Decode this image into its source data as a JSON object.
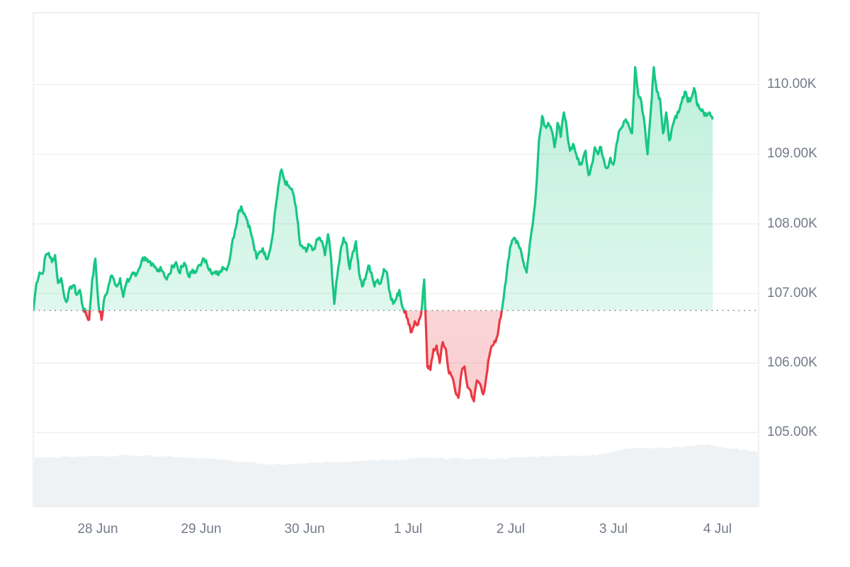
{
  "chart_data": {
    "type": "area",
    "title": "",
    "xlabel": "",
    "ylabel": "",
    "ylim": [
      103.95,
      110.99
    ],
    "y_ticks": [
      "110.00K",
      "109.00K",
      "108.00K",
      "107.00K",
      "106.00K",
      "105.00K"
    ],
    "y_tick_values": [
      110,
      109,
      108,
      107,
      106,
      105
    ],
    "x_ticks": [
      "28 Jun",
      "29 Jun",
      "30 Jun",
      "1 Jul",
      "2 Jul",
      "3 Jul",
      "4 Jul"
    ],
    "grid": true,
    "legend": "none",
    "baseline": 106.755,
    "baseline_style": "dotted",
    "colors": {
      "up_line": "#16c784",
      "down_line": "#ea3943",
      "up_fill": "#16c784",
      "down_fill": "#ea3943",
      "volume": "#eff2f5",
      "grid": "#eeeeee",
      "axis_text": "#737a89",
      "baseline": "#888888"
    },
    "series": [
      {
        "name": "Price (K USD)",
        "x_day_offset": [
          0.0,
          0.03,
          0.06,
          0.09,
          0.12,
          0.15,
          0.18,
          0.21,
          0.24,
          0.27,
          0.3,
          0.33,
          0.36,
          0.39,
          0.42,
          0.45,
          0.48,
          0.51,
          0.54,
          0.57,
          0.6,
          0.63,
          0.66,
          0.69,
          0.72,
          0.75,
          0.78,
          0.81,
          0.84,
          0.87,
          0.9,
          0.93,
          0.96,
          0.99,
          1.02,
          1.05,
          1.08,
          1.11,
          1.14,
          1.17,
          1.2,
          1.23,
          1.26,
          1.29,
          1.32,
          1.35,
          1.38,
          1.41,
          1.44,
          1.47,
          1.5,
          1.53,
          1.56,
          1.59,
          1.62,
          1.65,
          1.68,
          1.71,
          1.74,
          1.77,
          1.8,
          1.83,
          1.86,
          1.89,
          1.92,
          1.95,
          1.98,
          2.01,
          2.04,
          2.07,
          2.1,
          2.13,
          2.16,
          2.19,
          2.22,
          2.25,
          2.28,
          2.31,
          2.34,
          2.37,
          2.4,
          2.43,
          2.46,
          2.49,
          2.52,
          2.55,
          2.58,
          2.61,
          2.64,
          2.67,
          2.7,
          2.73,
          2.76,
          2.79,
          2.82,
          2.85,
          2.88,
          2.91,
          2.94,
          2.97,
          3.0,
          3.03,
          3.06,
          3.09,
          3.12,
          3.15,
          3.18,
          3.21,
          3.24,
          3.27,
          3.3,
          3.33,
          3.36,
          3.39,
          3.42,
          3.45,
          3.48,
          3.51,
          3.54,
          3.57,
          3.6,
          3.63,
          3.66,
          3.69,
          3.72,
          3.75,
          3.78,
          3.81,
          3.84,
          3.87,
          3.9,
          3.93,
          3.96,
          3.99,
          4.02,
          4.05,
          4.08,
          4.11,
          4.14,
          4.17,
          4.2,
          4.23,
          4.26,
          4.29,
          4.32,
          4.35,
          4.38,
          4.41,
          4.44,
          4.47,
          4.5,
          4.53,
          4.56,
          4.59,
          4.62,
          4.65,
          4.68,
          4.71,
          4.74,
          4.77,
          4.8,
          4.83,
          4.86,
          4.89,
          4.92,
          4.95,
          4.98,
          5.01,
          5.04,
          5.07,
          5.1,
          5.13,
          5.16,
          5.19,
          5.22,
          5.25,
          5.28,
          5.31,
          5.34,
          5.37,
          5.4,
          5.43,
          5.46,
          5.49,
          5.52,
          5.55,
          5.58,
          5.61,
          5.64,
          5.67,
          5.7,
          5.73,
          5.76,
          5.79,
          5.82,
          5.85,
          5.88,
          5.91,
          5.94,
          5.97,
          6.0,
          6.03,
          6.06,
          6.09,
          6.12,
          6.15,
          6.18,
          6.21,
          6.24,
          6.27,
          6.3,
          6.33,
          6.36,
          6.39,
          6.42,
          6.45,
          6.48,
          6.51,
          6.54,
          6.57,
          6.6,
          6.63,
          6.66,
          6.69,
          6.72,
          6.75,
          6.78,
          6.81,
          6.84,
          6.87,
          6.9,
          6.93,
          6.96,
          6.99,
          7.02
        ],
        "values": [
          106.75,
          107.15,
          107.3,
          107.28,
          107.55,
          107.58,
          107.45,
          107.55,
          107.15,
          107.22,
          106.95,
          106.9,
          107.1,
          107.12,
          106.98,
          107.05,
          106.8,
          106.7,
          106.62,
          107.2,
          107.5,
          106.85,
          106.62,
          106.95,
          107.05,
          107.25,
          107.2,
          107.1,
          107.22,
          106.95,
          107.15,
          107.2,
          107.3,
          107.25,
          107.35,
          107.48,
          107.52,
          107.45,
          107.4,
          107.38,
          107.32,
          107.38,
          107.3,
          107.2,
          107.28,
          107.4,
          107.45,
          107.3,
          107.38,
          107.42,
          107.25,
          107.3,
          107.32,
          107.38,
          107.4,
          107.5,
          107.42,
          107.35,
          107.3,
          107.28,
          107.3,
          107.38,
          107.35,
          107.42,
          107.7,
          107.9,
          108.15,
          108.25,
          108.15,
          108.05,
          107.9,
          107.7,
          107.5,
          107.6,
          107.65,
          107.5,
          107.58,
          107.8,
          108.2,
          108.55,
          108.78,
          108.62,
          108.55,
          108.5,
          108.4,
          108.1,
          107.7,
          107.65,
          107.6,
          107.7,
          107.62,
          107.7,
          107.8,
          107.75,
          107.55,
          107.85,
          107.5,
          106.85,
          107.25,
          107.6,
          107.8,
          107.7,
          107.35,
          107.6,
          107.75,
          107.3,
          107.1,
          107.2,
          107.4,
          107.3,
          107.1,
          107.2,
          107.15,
          107.35,
          107.3,
          107.0,
          106.85,
          106.92,
          107.05,
          106.8,
          106.75,
          106.55,
          106.45,
          106.6,
          106.55,
          106.7,
          107.2,
          105.95,
          105.9,
          106.2,
          106.25,
          106.0,
          106.3,
          106.2,
          105.85,
          105.8,
          105.6,
          105.5,
          105.85,
          105.95,
          105.65,
          105.6,
          105.45,
          105.75,
          105.7,
          105.55,
          105.8,
          106.1,
          106.25,
          106.3,
          106.5,
          106.75,
          107.1,
          107.45,
          107.7,
          107.8,
          107.75,
          107.65,
          107.45,
          107.3,
          107.7,
          108.0,
          108.45,
          109.2,
          109.55,
          109.4,
          109.45,
          109.35,
          109.1,
          109.45,
          109.25,
          109.6,
          109.35,
          109.05,
          109.15,
          109.0,
          108.85,
          108.9,
          109.05,
          108.7,
          108.85,
          109.1,
          109.0,
          109.1,
          108.9,
          108.8,
          108.95,
          108.85,
          109.15,
          109.35,
          109.4,
          109.5,
          109.4,
          109.3,
          110.25,
          109.85,
          109.75,
          109.45,
          109.0,
          109.6,
          110.25,
          109.9,
          109.8,
          109.3,
          109.6,
          109.2,
          109.4,
          109.55,
          109.6,
          109.75,
          109.9,
          109.75,
          109.8,
          109.95,
          109.7,
          109.65,
          109.6,
          109.55,
          109.6,
          109.5
        ]
      },
      {
        "name": "Volume (relative)",
        "x_day_offset": [
          0,
          0.5,
          1.0,
          1.5,
          2.0,
          2.25,
          2.5,
          2.75,
          3.0,
          3.25,
          3.5,
          3.75,
          4.0,
          4.5,
          5.0,
          5.25,
          5.5,
          5.6,
          5.75,
          6.0,
          6.25,
          6.5,
          6.75,
          7.02
        ],
        "values": [
          0.7,
          0.71,
          0.73,
          0.7,
          0.64,
          0.6,
          0.6,
          0.62,
          0.64,
          0.66,
          0.66,
          0.69,
          0.68,
          0.68,
          0.72,
          0.72,
          0.74,
          0.78,
          0.82,
          0.83,
          0.84,
          0.88,
          0.82,
          0.78
        ]
      }
    ]
  },
  "axes": {
    "y_labels": [
      "110.00K",
      "109.00K",
      "108.00K",
      "107.00K",
      "106.00K",
      "105.00K"
    ],
    "x_labels": [
      "28 Jun",
      "29 Jun",
      "30 Jun",
      "1 Jul",
      "2 Jul",
      "3 Jul",
      "4 Jul"
    ]
  }
}
